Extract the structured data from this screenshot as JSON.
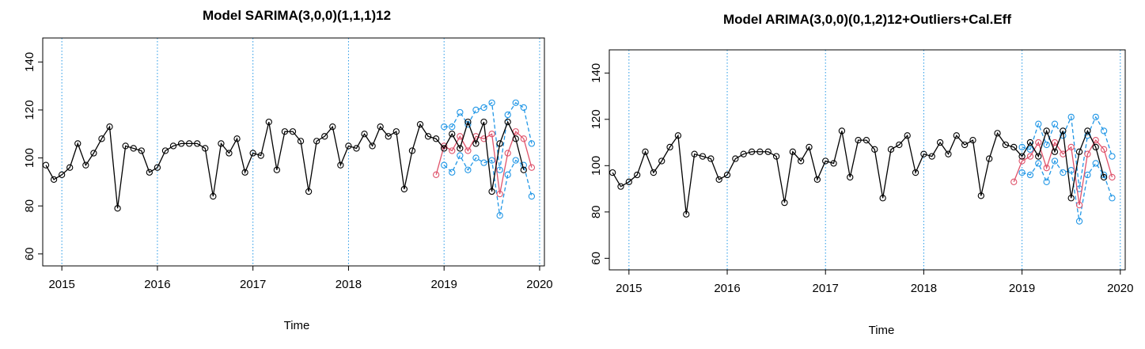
{
  "colors": {
    "observed": "#000000",
    "forecast": "#DF536B",
    "bounds": "#2297E6",
    "vline": "#2297E6"
  },
  "chart_data": [
    {
      "type": "line",
      "title": "Model SARIMA(3,0,0)(1,1,1)12",
      "xlabel": "Time",
      "ylabel": "",
      "xlim": [
        2014.8,
        2020.05
      ],
      "ylim": [
        55,
        150
      ],
      "xticks": [
        2015,
        2016,
        2017,
        2018,
        2019,
        2020
      ],
      "xtick_labels": [
        "2015",
        "2016",
        "2017",
        "2018",
        "2019",
        "2020"
      ],
      "yticks": [
        60,
        80,
        100,
        120,
        140
      ],
      "ytick_labels": [
        "60",
        "80",
        "100",
        "120",
        "140"
      ],
      "vlines": [
        2015,
        2016,
        2017,
        2018,
        2019,
        2020
      ],
      "x_start": 2014.8333,
      "x_step": 0.08333,
      "observed": [
        97,
        91,
        93,
        96,
        106,
        97,
        102,
        108,
        113,
        79,
        105,
        104,
        103,
        94,
        96,
        103,
        105,
        106,
        106,
        106,
        104,
        84,
        106,
        102,
        108,
        94,
        102,
        101,
        115,
        95,
        111,
        111,
        107,
        86,
        107,
        109,
        113,
        97,
        105,
        104,
        110,
        105,
        113,
        109,
        111,
        87,
        103,
        114,
        109,
        108,
        104,
        110,
        104,
        115,
        106,
        115,
        86,
        106,
        115,
        108,
        95
      ],
      "forecast_start": 2018.9167,
      "forecast": [
        93,
        105,
        103,
        109,
        103,
        109,
        108,
        110,
        85,
        102,
        111,
        108,
        96
      ],
      "upper": [
        113,
        113,
        119,
        114,
        120,
        121,
        123,
        95,
        118,
        123,
        121,
        106
      ],
      "lower": [
        97,
        94,
        101,
        95,
        100,
        98,
        99,
        76,
        93,
        99,
        97,
        84
      ]
    },
    {
      "type": "line",
      "title": "Model ARIMA(3,0,0)(0,1,2)12+Outliers+Cal.Eff",
      "xlabel": "Time",
      "ylabel": "",
      "xlim": [
        2014.8,
        2020.05
      ],
      "ylim": [
        55,
        150
      ],
      "xticks": [
        2015,
        2016,
        2017,
        2018,
        2019,
        2020
      ],
      "xtick_labels": [
        "2015",
        "2016",
        "2017",
        "2018",
        "2019",
        "2020"
      ],
      "yticks": [
        60,
        80,
        100,
        120,
        140
      ],
      "ytick_labels": [
        "60",
        "80",
        "100",
        "120",
        "140"
      ],
      "vlines": [
        2015,
        2016,
        2017,
        2018,
        2019,
        2020
      ],
      "x_start": 2014.8333,
      "x_step": 0.08333,
      "observed": [
        97,
        91,
        93,
        96,
        106,
        97,
        102,
        108,
        113,
        79,
        105,
        104,
        103,
        94,
        96,
        103,
        105,
        106,
        106,
        106,
        104,
        84,
        106,
        102,
        108,
        94,
        102,
        101,
        115,
        95,
        111,
        111,
        107,
        86,
        107,
        109,
        113,
        97,
        105,
        104,
        110,
        105,
        113,
        109,
        111,
        87,
        103,
        114,
        109,
        108,
        104,
        110,
        104,
        115,
        106,
        115,
        86,
        106,
        115,
        108,
        95
      ],
      "forecast_start": 2018.9167,
      "forecast": [
        93,
        102,
        104,
        110,
        99,
        110,
        105,
        108,
        83,
        105,
        111,
        107,
        95
      ],
      "upper": [
        108,
        107,
        118,
        109,
        118,
        113,
        121,
        90,
        113,
        121,
        115,
        104
      ],
      "lower": [
        97,
        96,
        101,
        93,
        102,
        97,
        98,
        76,
        96,
        101,
        96,
        86
      ]
    }
  ]
}
